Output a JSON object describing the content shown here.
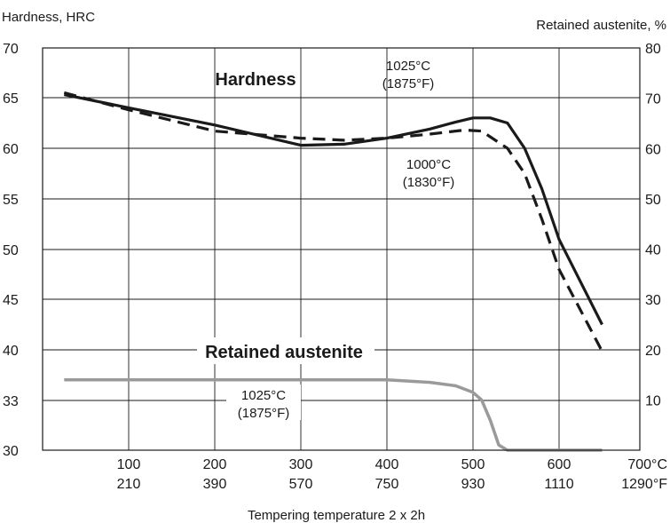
{
  "chart_data": {
    "type": "line",
    "y_left_label": "Hardness, HRC",
    "y_right_label": "Retained austenite, %",
    "xlabel": "Tempering temperature 2 x 2h",
    "x_ticks_c": [
      "100",
      "200",
      "300",
      "400",
      "500",
      "600",
      "700°C"
    ],
    "x_ticks_f": [
      "210",
      "390",
      "570",
      "750",
      "930",
      "1110",
      "1290°F"
    ],
    "x_range_c": [
      0,
      700
    ],
    "y_left_ticks": [
      "70",
      "65",
      "60",
      "55",
      "50",
      "45",
      "40",
      "33",
      "30"
    ],
    "y_right_ticks": [
      "80",
      "70",
      "60",
      "50",
      "40",
      "30",
      "20",
      "10"
    ],
    "y_right_range": [
      0,
      80
    ],
    "grid": true,
    "annotations": {
      "hardness_title": "Hardness",
      "austenite_title": "Retained austenite",
      "h1025_line1": "1025°C",
      "h1025_line2": "(1875°F)",
      "h1000_line1": "1000°C",
      "h1000_line2": "(1830°F)",
      "ra1025_line1": "1025°C",
      "ra1025_line2": "(1875°F)"
    },
    "series": [
      {
        "name": "1025°C (1875°F)",
        "kind": "hardness",
        "style": "solid",
        "color": "#1a1a1a",
        "x": [
          25,
          100,
          200,
          300,
          350,
          400,
          450,
          480,
          500,
          520,
          540,
          560,
          580,
          600,
          650
        ],
        "y": [
          65.3,
          64.0,
          62.3,
          60.3,
          60.4,
          61.0,
          61.9,
          62.6,
          63.0,
          63.0,
          62.5,
          60.0,
          56.0,
          51.0,
          42.5
        ]
      },
      {
        "name": "1000°C (1830°F)",
        "kind": "hardness",
        "style": "dashed",
        "color": "#1a1a1a",
        "x": [
          25,
          100,
          200,
          300,
          350,
          400,
          450,
          490,
          510,
          540,
          560,
          580,
          600,
          650
        ],
        "y": [
          65.5,
          63.8,
          61.7,
          61.0,
          60.8,
          61.0,
          61.4,
          61.8,
          61.7,
          60.0,
          57.5,
          53.0,
          48.0,
          39.8
        ]
      },
      {
        "name": "1025°C (1875°F)",
        "kind": "retained_austenite",
        "style": "solid",
        "color": "#9a9a9a",
        "x": [
          25,
          100,
          200,
          300,
          400,
          450,
          480,
          500,
          510,
          520,
          530,
          540,
          560,
          650
        ],
        "y": [
          14,
          14,
          14,
          14,
          14,
          13.5,
          12.8,
          11.5,
          10,
          6,
          1,
          0,
          0,
          0
        ]
      }
    ]
  }
}
